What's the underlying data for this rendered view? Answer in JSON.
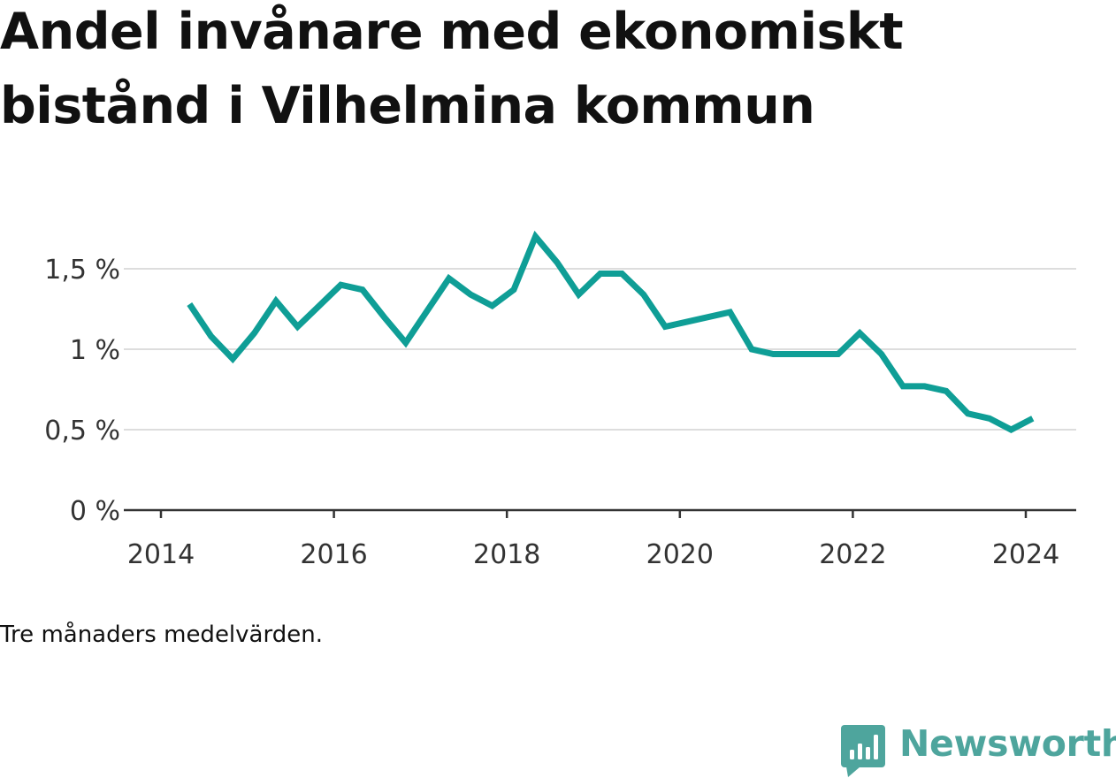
{
  "header": {
    "title": "Andel invånare med ekonomiskt bistånd i Vilhelmina kommun"
  },
  "note": "Tre månaders medelvärden.",
  "brand": {
    "name": "Newsworthy",
    "icon": "newsworthy-logo-icon",
    "color": "#4ea59d"
  },
  "colors": {
    "line": "#0f9e96",
    "grid": "#dddddd",
    "axis": "#333333",
    "text": "#111111"
  },
  "chart_data": {
    "type": "line",
    "title": "Andel invånare med ekonomiskt bistånd i Vilhelmina kommun",
    "xlabel": "",
    "ylabel": "",
    "x_ticks": [
      2014,
      2016,
      2018,
      2020,
      2022,
      2024
    ],
    "x_tick_labels": [
      "2014",
      "2016",
      "2018",
      "2020",
      "2022",
      "2024"
    ],
    "y_ticks": [
      0,
      0.5,
      1,
      1.5
    ],
    "y_tick_labels": [
      "0 %",
      "0,5 %",
      "1 %",
      "1,5 %"
    ],
    "xlim": [
      2014,
      2025.1
    ],
    "ylim": [
      0,
      1.72
    ],
    "grid": true,
    "legend": "none",
    "series": [
      {
        "x": [
          2014.33,
          2014.58,
          2014.83,
          2015.08,
          2015.33,
          2015.58,
          2015.83,
          2016.08,
          2016.33,
          2016.58,
          2016.83,
          2017.08,
          2017.33,
          2017.58,
          2017.83,
          2018.08,
          2018.33,
          2018.58,
          2018.83,
          2019.08,
          2019.33,
          2019.58,
          2019.83,
          2020.08,
          2020.33,
          2020.58,
          2020.83,
          2021.08,
          2021.33,
          2021.58,
          2021.83,
          2022.08,
          2022.33,
          2022.58,
          2022.83,
          2023.08,
          2023.33,
          2023.58,
          2023.83,
          2024.08
        ],
        "values": [
          1.28,
          1.08,
          0.94,
          1.1,
          1.3,
          1.14,
          1.27,
          1.4,
          1.37,
          1.2,
          1.04,
          1.24,
          1.44,
          1.34,
          1.27,
          1.37,
          1.7,
          1.54,
          1.34,
          1.47,
          1.47,
          1.34,
          1.14,
          1.17,
          1.2,
          1.23,
          1.0,
          0.97,
          0.97,
          0.97,
          0.97,
          1.1,
          0.97,
          0.77,
          0.77,
          0.74,
          0.6,
          0.57,
          0.5,
          0.57
        ]
      }
    ]
  }
}
